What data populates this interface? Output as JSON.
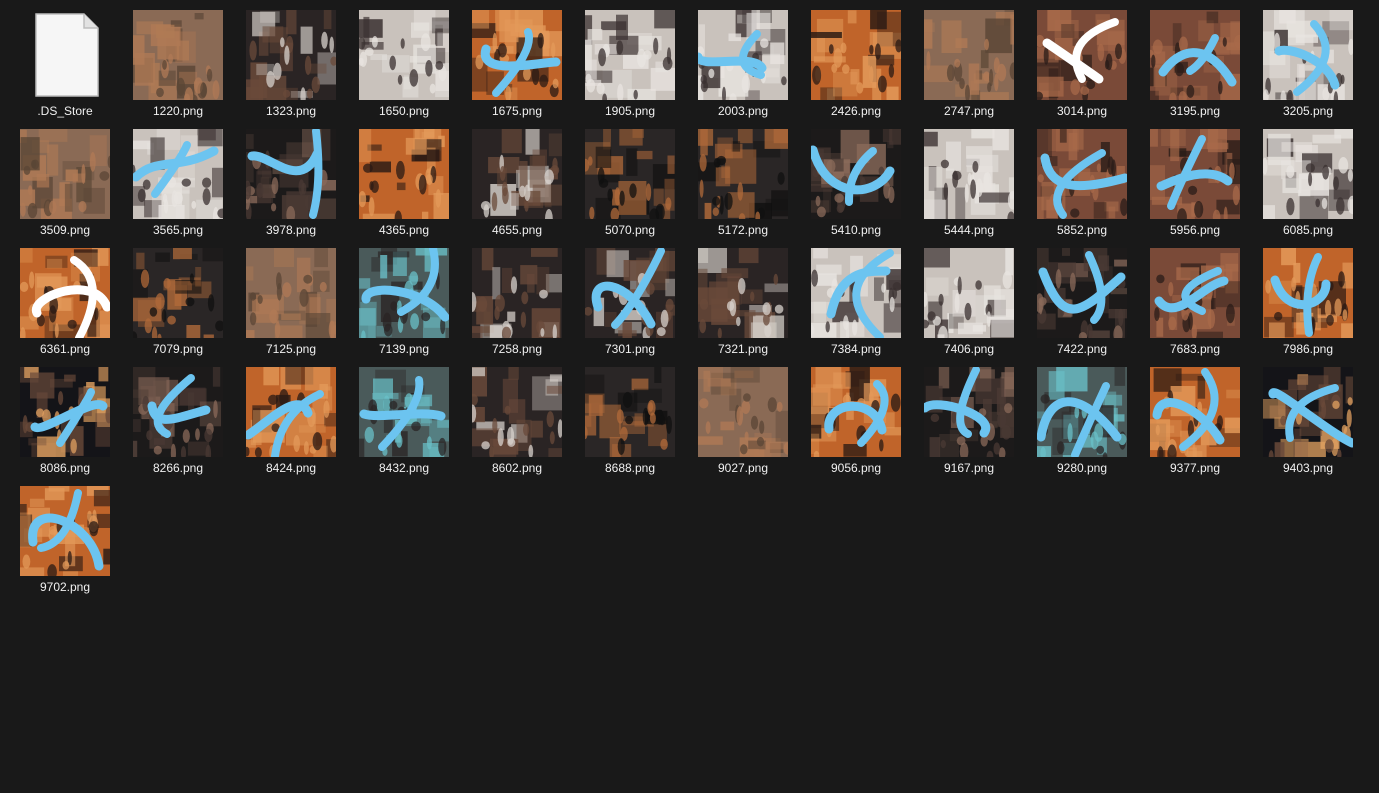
{
  "explorer": {
    "files": [
      {
        "name": ".DS_Store",
        "kind": "document-icon",
        "palette": "file"
      },
      {
        "name": "1220.png",
        "kind": "image",
        "palette": "street"
      },
      {
        "name": "1323.png",
        "kind": "image",
        "palette": "crowd"
      },
      {
        "name": "1650.png",
        "kind": "image",
        "palette": "white-suits"
      },
      {
        "name": "1675.png",
        "kind": "image",
        "palette": "orange-night",
        "stroke": "#6cc4f0"
      },
      {
        "name": "1905.png",
        "kind": "image",
        "palette": "white-suits"
      },
      {
        "name": "2003.png",
        "kind": "image",
        "palette": "white-suits",
        "stroke": "#6cc4f0"
      },
      {
        "name": "2426.png",
        "kind": "image",
        "palette": "orange-night"
      },
      {
        "name": "2747.png",
        "kind": "image",
        "palette": "street"
      },
      {
        "name": "3014.png",
        "kind": "image",
        "palette": "building",
        "stroke": "#ffffff"
      },
      {
        "name": "3195.png",
        "kind": "image",
        "palette": "building",
        "stroke": "#6cc4f0"
      },
      {
        "name": "3205.png",
        "kind": "image",
        "palette": "white-suits",
        "stroke": "#6cc4f0"
      },
      {
        "name": "3509.png",
        "kind": "image",
        "palette": "street"
      },
      {
        "name": "3565.png",
        "kind": "image",
        "palette": "white-suits",
        "stroke": "#6cc4f0"
      },
      {
        "name": "3978.png",
        "kind": "image",
        "palette": "dark-building",
        "stroke": "#6cc4f0"
      },
      {
        "name": "4365.png",
        "kind": "image",
        "palette": "orange-night"
      },
      {
        "name": "4655.png",
        "kind": "image",
        "palette": "crowd"
      },
      {
        "name": "5070.png",
        "kind": "image",
        "palette": "vehicle"
      },
      {
        "name": "5172.png",
        "kind": "image",
        "palette": "vehicle"
      },
      {
        "name": "5410.png",
        "kind": "image",
        "palette": "dark-building",
        "stroke": "#6cc4f0"
      },
      {
        "name": "5444.png",
        "kind": "image",
        "palette": "white-suits"
      },
      {
        "name": "5852.png",
        "kind": "image",
        "palette": "building",
        "stroke": "#6cc4f0"
      },
      {
        "name": "5956.png",
        "kind": "image",
        "palette": "building",
        "stroke": "#6cc4f0"
      },
      {
        "name": "6085.png",
        "kind": "image",
        "palette": "white-suits"
      },
      {
        "name": "6361.png",
        "kind": "image",
        "palette": "orange-night",
        "stroke": "#ffffff"
      },
      {
        "name": "7079.png",
        "kind": "image",
        "palette": "vehicle"
      },
      {
        "name": "7125.png",
        "kind": "image",
        "palette": "street"
      },
      {
        "name": "7139.png",
        "kind": "image",
        "palette": "teal-building",
        "stroke": "#6cc4f0"
      },
      {
        "name": "7258.png",
        "kind": "image",
        "palette": "crowd"
      },
      {
        "name": "7301.png",
        "kind": "image",
        "palette": "crowd",
        "stroke": "#6cc4f0"
      },
      {
        "name": "7321.png",
        "kind": "image",
        "palette": "crowd"
      },
      {
        "name": "7384.png",
        "kind": "image",
        "palette": "white-suits",
        "stroke": "#6cc4f0"
      },
      {
        "name": "7406.png",
        "kind": "image",
        "palette": "white-suits"
      },
      {
        "name": "7422.png",
        "kind": "image",
        "palette": "dark-building",
        "stroke": "#6cc4f0"
      },
      {
        "name": "7683.png",
        "kind": "image",
        "palette": "building",
        "stroke": "#6cc4f0"
      },
      {
        "name": "7986.png",
        "kind": "image",
        "palette": "orange-night",
        "stroke": "#6cc4f0"
      },
      {
        "name": "8086.png",
        "kind": "image",
        "palette": "night-lights",
        "stroke": "#6cc4f0"
      },
      {
        "name": "8266.png",
        "kind": "image",
        "palette": "dark-building",
        "stroke": "#6cc4f0"
      },
      {
        "name": "8424.png",
        "kind": "image",
        "palette": "orange-night",
        "stroke": "#6cc4f0"
      },
      {
        "name": "8432.png",
        "kind": "image",
        "palette": "teal-building",
        "stroke": "#6cc4f0"
      },
      {
        "name": "8602.png",
        "kind": "image",
        "palette": "crowd"
      },
      {
        "name": "8688.png",
        "kind": "image",
        "palette": "vehicle"
      },
      {
        "name": "9027.png",
        "kind": "image",
        "palette": "street"
      },
      {
        "name": "9056.png",
        "kind": "image",
        "palette": "orange-night",
        "stroke": "#6cc4f0"
      },
      {
        "name": "9167.png",
        "kind": "image",
        "palette": "dark-building",
        "stroke": "#6cc4f0"
      },
      {
        "name": "9280.png",
        "kind": "image",
        "palette": "teal-building",
        "stroke": "#6cc4f0"
      },
      {
        "name": "9377.png",
        "kind": "image",
        "palette": "orange-night",
        "stroke": "#6cc4f0"
      },
      {
        "name": "9403.png",
        "kind": "image",
        "palette": "night-lights",
        "stroke": "#6cc4f0"
      },
      {
        "name": "9702.png",
        "kind": "image",
        "palette": "orange-night",
        "stroke": "#6cc4f0"
      }
    ]
  },
  "colors": {
    "background": "#191919",
    "label": "#f0f0f0",
    "accent_stroke": "#6cc4f0"
  }
}
